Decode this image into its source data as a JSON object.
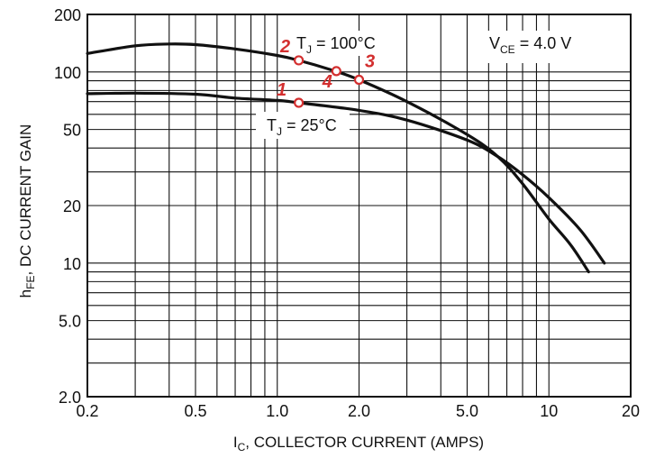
{
  "chart_data": {
    "type": "line",
    "title": "",
    "xlabel": {
      "main": "I",
      "sub": "C",
      "rest": ", COLLECTOR CURRENT (AMPS)"
    },
    "ylabel": {
      "main": "h",
      "sub": "FE",
      "rest": ", DC CURRENT GAIN"
    },
    "x_scale": "log",
    "y_scale": "log",
    "xlim": [
      0.2,
      20
    ],
    "ylim": [
      2.0,
      200
    ],
    "grid": true,
    "x_ticks": [
      {
        "value": 0.2,
        "label": "0.2"
      },
      {
        "value": 0.5,
        "label": "0.5"
      },
      {
        "value": 1.0,
        "label": "1.0"
      },
      {
        "value": 2.0,
        "label": "2.0"
      },
      {
        "value": 5.0,
        "label": "5.0"
      },
      {
        "value": 10,
        "label": "10"
      },
      {
        "value": 20,
        "label": "20"
      }
    ],
    "y_ticks": [
      {
        "value": 2.0,
        "label": "2.0"
      },
      {
        "value": 5.0,
        "label": "5.0"
      },
      {
        "value": 10,
        "label": "10"
      },
      {
        "value": 20,
        "label": "20"
      },
      {
        "value": 50,
        "label": "50"
      },
      {
        "value": 100,
        "label": "100"
      },
      {
        "value": 200,
        "label": "200"
      }
    ],
    "series": [
      {
        "x": [
          0.2,
          0.3,
          0.4,
          0.5,
          0.7,
          1.0,
          1.2,
          1.6,
          2.0,
          3.0,
          5.0,
          6.5,
          8.0,
          10,
          12,
          14
        ],
        "y": [
          125,
          137,
          140,
          139,
          132,
          122,
          115,
          102,
          91,
          70,
          47,
          36,
          26,
          17,
          12.5,
          9
        ]
      },
      {
        "x": [
          0.2,
          0.3,
          0.5,
          0.7,
          1.0,
          1.2,
          2.0,
          3.0,
          5.0,
          6.5,
          8.0,
          10,
          13,
          16
        ],
        "y": [
          77,
          77.5,
          76.5,
          73,
          71,
          69,
          63,
          56,
          44,
          36,
          29,
          22,
          15,
          10
        ]
      }
    ],
    "annotations": {
      "vce": {
        "pre": "V",
        "sub": "CE",
        "post": " = 4.0 V"
      },
      "tj100": {
        "pre": "T",
        "sub": "J",
        "post": " = 100°C"
      },
      "tj25": {
        "pre": "T",
        "sub": "J",
        "post": " = 25°C"
      }
    },
    "markers": [
      {
        "label": "1",
        "x": 1.2,
        "y": 69
      },
      {
        "label": "2",
        "x": 1.2,
        "y": 115
      },
      {
        "label": "3",
        "x": 2.0,
        "y": 91
      },
      {
        "label": "4",
        "x": 1.65,
        "y": 101
      }
    ],
    "colors": {
      "curve": "#111111",
      "grid": "#111111",
      "marker": "#d32f2f"
    }
  }
}
